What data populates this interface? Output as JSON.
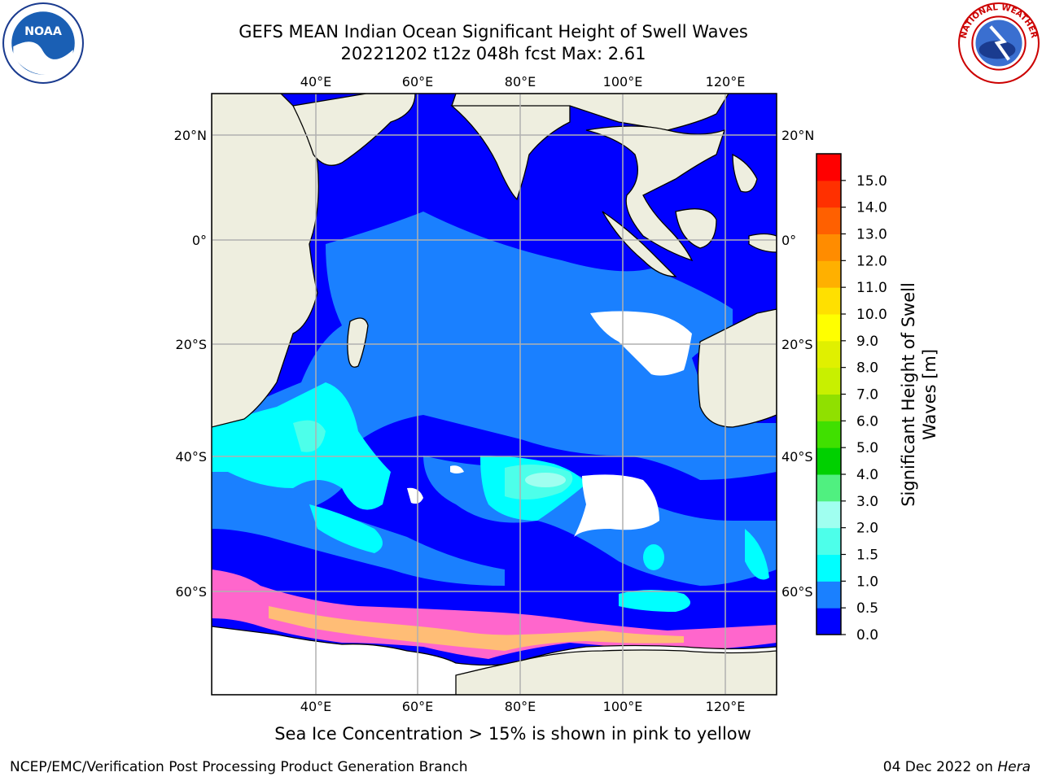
{
  "title": {
    "line1": "GEFS MEAN Indian Ocean Significant Height of Swell Waves",
    "line2": "20221202 t12z 048h fcst   Max: 2.61"
  },
  "logos": {
    "left": "NOAA",
    "right_ring": "NATIONAL WEATHER SERVICE"
  },
  "map": {
    "lon_labels_top": [
      "40°E",
      "60°E",
      "80°E",
      "100°E",
      "120°E"
    ],
    "lon_labels_bottom": [
      "40°E",
      "60°E",
      "80°E",
      "100°E",
      "120°E"
    ],
    "lat_labels_left": [
      "20°N",
      "0°",
      "20°S",
      "40°S",
      "60°S"
    ],
    "lat_labels_right": [
      "20°N",
      "0°",
      "20°S",
      "40°S",
      "60°S"
    ],
    "colors": {
      "land": "#eeeedf",
      "ocean_0_0.5": "#0000ff",
      "ocean_0.5_1.0": "#1a80ff",
      "ocean_1.0_1.5": "#00ffff",
      "ocean_1.5_2.0": "#4dffea",
      "ocean_2.0_3.0": "#a0fff0",
      "sea_ice": "#ff66cc",
      "grid": "#b0b0b0"
    }
  },
  "colorbar": {
    "label_line1": "Significant Height of Swell",
    "label_line2": "Waves [m]",
    "ticks": [
      "15.0",
      "14.0",
      "13.0",
      "12.0",
      "11.0",
      "10.0",
      "9.0",
      "8.0",
      "7.0",
      "6.0",
      "5.0",
      "4.0",
      "3.0",
      "2.0",
      "1.5",
      "1.0",
      "0.5",
      "0.0"
    ],
    "colors": [
      "#0000ff",
      "#1a80ff",
      "#00ffff",
      "#4dffea",
      "#a0fff0",
      "#50f080",
      "#00d000",
      "#40e000",
      "#90e000",
      "#c8f000",
      "#e0f000",
      "#ffff00",
      "#ffe000",
      "#ffb000",
      "#ff8c00",
      "#ff6000",
      "#ff3000",
      "#ff0000"
    ]
  },
  "footnote": "Sea Ice Concentration > 15% is shown in pink to yellow",
  "credit_left": "NCEP/EMC/Verification Post Processing Product Generation Branch",
  "credit_right_prefix": "04 Dec 2022 on ",
  "credit_right_host": "Hera"
}
